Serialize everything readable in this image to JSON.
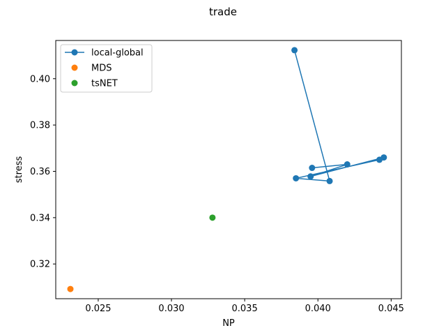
{
  "chart_data": {
    "type": "scatter",
    "title": "trade",
    "xlabel": "NP",
    "ylabel": "stress",
    "xlim": [
      0.0221,
      0.0457
    ],
    "ylim": [
      0.305,
      0.4165
    ],
    "xticks": [
      0.025,
      0.03,
      0.035,
      0.04,
      0.045
    ],
    "xtick_labels": [
      "0.025",
      "0.030",
      "0.035",
      "0.040",
      "0.045"
    ],
    "yticks": [
      0.32,
      0.34,
      0.36,
      0.38,
      0.4
    ],
    "ytick_labels": [
      "0.32",
      "0.34",
      "0.36",
      "0.38",
      "0.40"
    ],
    "grid": false,
    "legend_position": "top-left",
    "series": [
      {
        "name": "local-global",
        "color": "#1f77b4",
        "style": "line-marker",
        "x": [
          0.0384,
          0.0408,
          0.0385,
          0.0442,
          0.0445,
          0.0395,
          0.042,
          0.0396
        ],
        "y": [
          0.4123,
          0.3558,
          0.357,
          0.365,
          0.366,
          0.3578,
          0.363,
          0.3615
        ]
      },
      {
        "name": "MDS",
        "color": "#ff7f0e",
        "style": "marker",
        "x": [
          0.0231
        ],
        "y": [
          0.3092
        ]
      },
      {
        "name": "tsNET",
        "color": "#2ca02c",
        "style": "marker",
        "x": [
          0.0328
        ],
        "y": [
          0.34
        ]
      }
    ]
  }
}
